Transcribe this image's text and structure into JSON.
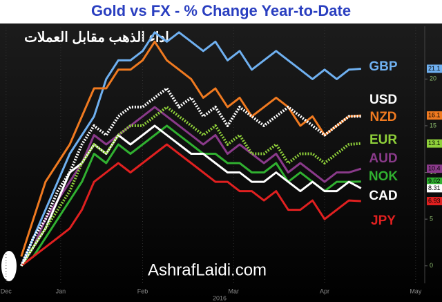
{
  "chart_data": {
    "type": "line",
    "title": "Gold vs FX - % Change Year-to-Date",
    "subtitle": "اداء الذهب مقابل العملات",
    "watermark": "AshrafLaidi.com",
    "x_sublabel": "2016",
    "x": [
      7,
      11,
      15,
      19,
      23,
      27,
      31,
      35,
      39,
      43,
      47,
      51,
      55,
      59,
      63,
      67,
      71,
      75,
      79,
      83,
      87,
      91,
      95,
      99,
      103,
      107,
      111,
      115,
      119
    ],
    "xlim": [
      0,
      140
    ],
    "xticks": [
      {
        "value": 2,
        "label": "Dec"
      },
      {
        "value": 20,
        "label": "Jan"
      },
      {
        "value": 47,
        "label": "Feb"
      },
      {
        "value": 77,
        "label": "Mar"
      },
      {
        "value": 107,
        "label": "Apr"
      },
      {
        "value": 137,
        "label": "May"
      }
    ],
    "ylim": [
      -1.5,
      25.5
    ],
    "yticks": [
      0,
      5,
      10,
      15,
      20
    ],
    "grid": true,
    "series": [
      {
        "name": "GBP",
        "color": "#6fb0f0",
        "style": "solid",
        "values": [
          0,
          3,
          6,
          9,
          12,
          14,
          16,
          20,
          22,
          22,
          23,
          25,
          24,
          25,
          24,
          23,
          24,
          22,
          23,
          21,
          22,
          23,
          22,
          21,
          20,
          21,
          20,
          21,
          21.1
        ],
        "value_labels": [
          "21.1"
        ]
      },
      {
        "name": "NZD",
        "color": "#f07a20",
        "style": "solid",
        "values": [
          1,
          5,
          9,
          11,
          13,
          16,
          19,
          19,
          21,
          21,
          22,
          24,
          22,
          21,
          20,
          18,
          19,
          17,
          18,
          16,
          17,
          18,
          17,
          15,
          16,
          14,
          15,
          16,
          16.1
        ],
        "value_labels": [
          "16.1"
        ]
      },
      {
        "name": "AUD",
        "color": "#8a3a8a",
        "style": "solid",
        "values": [
          0,
          2,
          5,
          7,
          9,
          11,
          14,
          13,
          14,
          15,
          16,
          17,
          16,
          15,
          14,
          13,
          14,
          12,
          13,
          12,
          11,
          12,
          10,
          11,
          10,
          9,
          10,
          10,
          10.4
        ],
        "value_labels": [
          "10.4"
        ]
      },
      {
        "name": "NOK",
        "color": "#30b030",
        "style": "solid",
        "values": [
          0,
          1,
          3,
          5,
          7,
          9,
          12,
          11,
          13,
          12,
          13,
          14,
          15,
          14,
          13,
          12,
          12,
          11,
          11,
          10,
          10,
          11,
          9,
          10,
          9,
          8,
          9,
          9,
          9.02
        ],
        "value_labels": [
          "9.02"
        ]
      },
      {
        "name": "CAD",
        "color": "#ffffff",
        "style": "solid",
        "values": [
          0,
          2,
          4,
          7,
          10,
          11,
          13,
          12,
          14,
          13,
          14,
          15,
          14,
          13,
          12,
          12,
          11,
          10,
          10,
          9,
          9,
          10,
          9,
          8,
          9,
          8,
          8,
          9,
          8.31
        ],
        "value_labels": [
          "8.31"
        ]
      },
      {
        "name": "JPY",
        "color": "#e02020",
        "style": "solid",
        "values": [
          0,
          1,
          2,
          3,
          4,
          6,
          9,
          10,
          11,
          10,
          11,
          12,
          13,
          12,
          11,
          10,
          9,
          9,
          8,
          8,
          7,
          8,
          6,
          6,
          7,
          5,
          6,
          7,
          6.93
        ],
        "value_labels": [
          "6.93"
        ]
      },
      {
        "name": "EUR",
        "color": "#8fd03a",
        "style": "dotted",
        "values": [
          0,
          2,
          4,
          6,
          8,
          11,
          13,
          12,
          14,
          15,
          15,
          16,
          17,
          16,
          15,
          14,
          15,
          13,
          14,
          12,
          12,
          13,
          11,
          12,
          12,
          11,
          12,
          13,
          13.1
        ],
        "value_labels": [
          "13.1"
        ]
      },
      {
        "name": "USD",
        "color": "#ffffff",
        "style": "dotted",
        "values": [
          0,
          3,
          5,
          8,
          10,
          13,
          15,
          14,
          16,
          17,
          17,
          18,
          19,
          17,
          18,
          16,
          17,
          15,
          17,
          16,
          15,
          16,
          17,
          16,
          15,
          14,
          15,
          16,
          16
        ]
      }
    ]
  }
}
